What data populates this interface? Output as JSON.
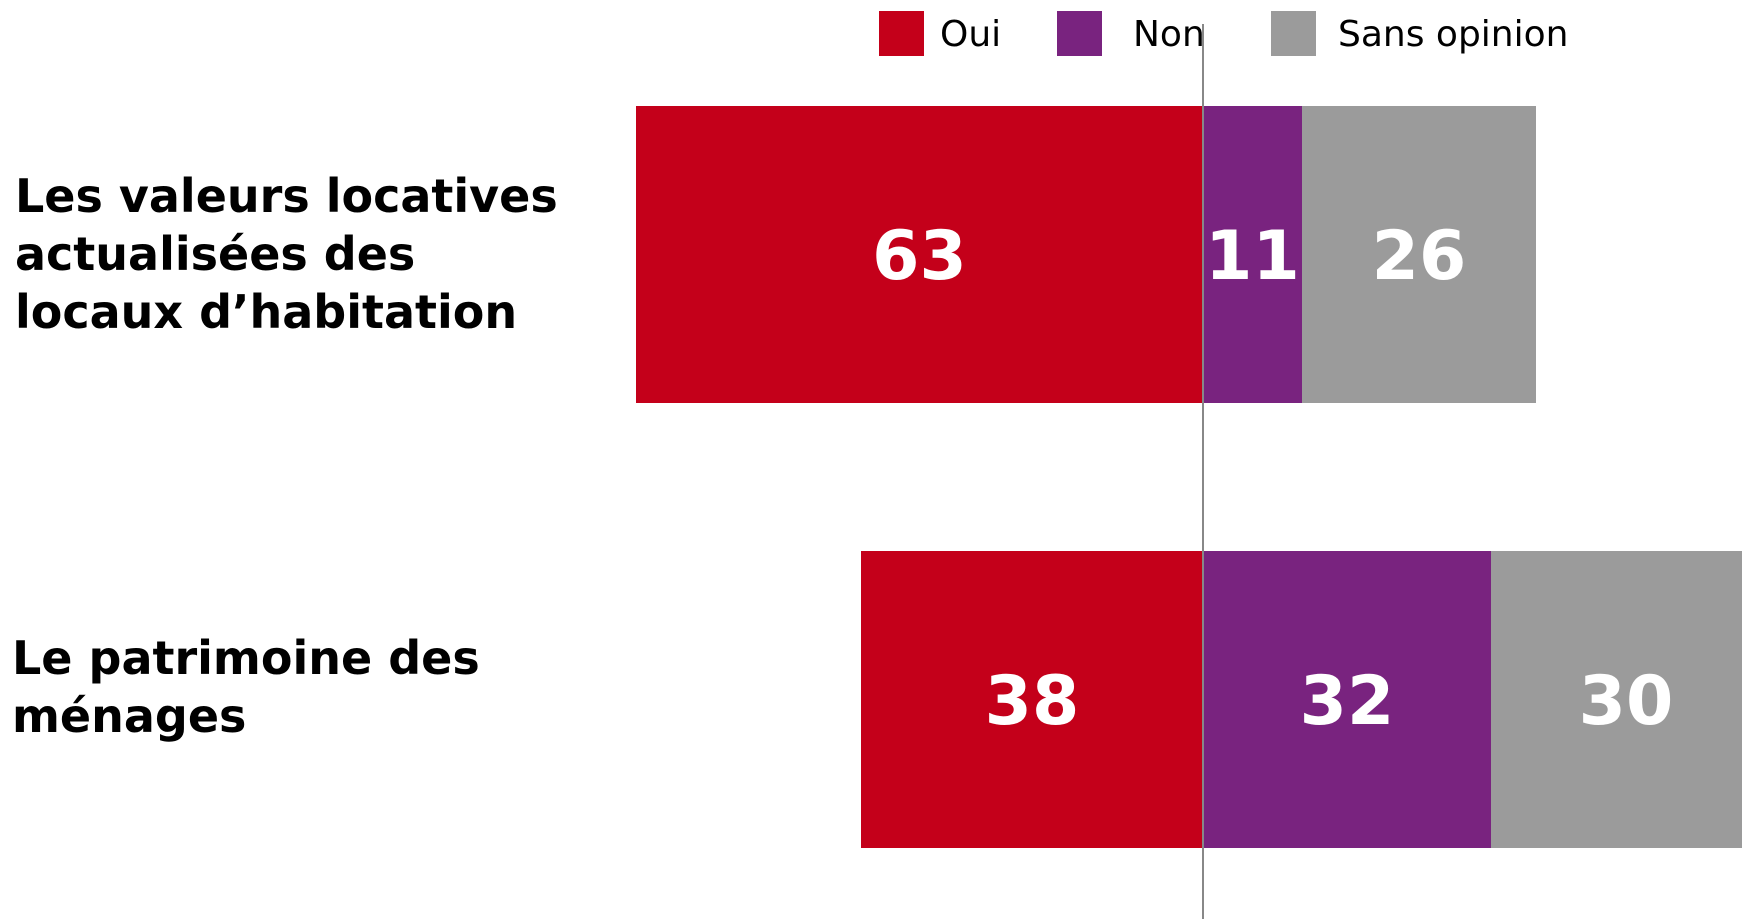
{
  "chart_data": {
    "type": "bar",
    "orientation": "horizontal",
    "stacked": true,
    "diverging": true,
    "categories": [
      "Les valeurs locatives actualisées des locaux d’habitation",
      "Le patrimoine des ménages"
    ],
    "series": [
      {
        "name": "Oui",
        "color": "#c4001a",
        "values": [
          63,
          38
        ]
      },
      {
        "name": "Non",
        "color": "#79237f",
        "values": [
          11,
          32
        ]
      },
      {
        "name": "Sans opinion",
        "color": "#9b9b9b",
        "values": [
          26,
          30
        ]
      }
    ],
    "legend": "top"
  }
}
